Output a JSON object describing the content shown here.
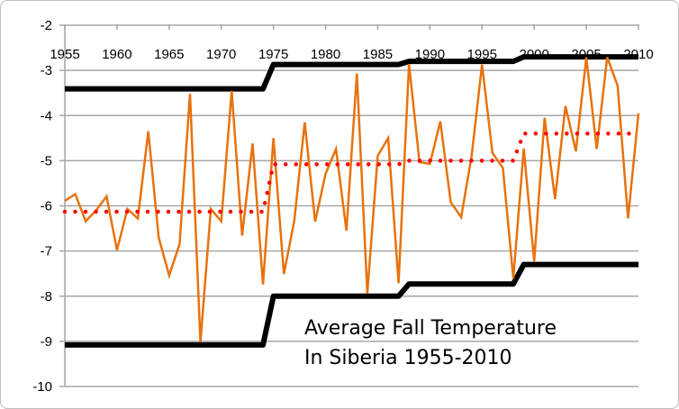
{
  "chart_data": {
    "type": "line",
    "title": "",
    "annotation": [
      "Average Fall Temperature",
      "In Siberia  1955-2010"
    ],
    "xlabel": "",
    "ylabel": "",
    "xlim": [
      1955,
      2010
    ],
    "ylim": [
      -10,
      -2
    ],
    "x_ticks": [
      "1955",
      "1960",
      "1965",
      "1970",
      "1975",
      "1980",
      "1985",
      "1990",
      "1995",
      "2000",
      "2005",
      "2010"
    ],
    "y_ticks": [
      "-2",
      "-3",
      "-4",
      "-5",
      "-6",
      "-7",
      "-8",
      "-9",
      "-10"
    ],
    "grid": true,
    "x_axis_position": "top",
    "legend": "none",
    "x": [
      1955,
      1956,
      1957,
      1958,
      1959,
      1960,
      1961,
      1962,
      1963,
      1964,
      1965,
      1966,
      1967,
      1968,
      1969,
      1970,
      1971,
      1972,
      1973,
      1974,
      1975,
      1976,
      1977,
      1978,
      1979,
      1980,
      1981,
      1982,
      1983,
      1984,
      1985,
      1986,
      1987,
      1988,
      1989,
      1990,
      1991,
      1992,
      1993,
      1994,
      1995,
      1996,
      1997,
      1998,
      1999,
      2000,
      2001,
      2002,
      2003,
      2004,
      2005,
      2006,
      2007,
      2008,
      2009,
      2010
    ],
    "series": [
      {
        "style": "solid",
        "color": "#e8720c",
        "values": [
          -5.89,
          -5.74,
          -6.34,
          -6.1,
          -5.79,
          -6.98,
          -6.07,
          -6.28,
          -4.35,
          -6.7,
          -7.54,
          -6.85,
          -3.52,
          -9.02,
          -6.07,
          -6.34,
          -3.45,
          -6.66,
          -4.62,
          -7.74,
          -4.5,
          -7.51,
          -6.33,
          -4.15,
          -6.35,
          -5.29,
          -4.74,
          -6.55,
          -3.07,
          -7.94,
          -4.89,
          -4.5,
          -7.71,
          -2.86,
          -5.03,
          -5.07,
          -4.13,
          -5.92,
          -6.25,
          -4.9,
          -2.87,
          -4.83,
          -5.16,
          -7.61,
          -4.73,
          -7.23,
          -4.05,
          -5.85,
          -3.79,
          -4.79,
          -2.71,
          -4.74,
          -2.71,
          -3.34,
          -6.28,
          -3.95
        ]
      },
      {
        "style": "dotted",
        "color": "#ff0000",
        "segments": [
          {
            "from": 1955,
            "to": 1974,
            "value": -6.13
          },
          {
            "from": 1975,
            "to": 1987,
            "value": -5.08
          },
          {
            "from": 1988,
            "to": 1998,
            "value": -5.0
          },
          {
            "from": 1999,
            "to": 2010,
            "value": -4.4
          }
        ]
      },
      {
        "style": "thick",
        "color": "#000000",
        "segments": [
          {
            "from": 1955,
            "to": 1974,
            "value": -3.41
          },
          {
            "from": 1975,
            "to": 1987,
            "value": -2.87
          },
          {
            "from": 1988,
            "to": 1998,
            "value": -2.8
          },
          {
            "from": 1999,
            "to": 2010,
            "value": -2.7
          }
        ]
      },
      {
        "style": "thick",
        "color": "#000000",
        "segments": [
          {
            "from": 1955,
            "to": 1974,
            "value": -9.08
          },
          {
            "from": 1975,
            "to": 1987,
            "value": -8.0
          },
          {
            "from": 1988,
            "to": 1998,
            "value": -7.73
          },
          {
            "from": 1999,
            "to": 2010,
            "value": -7.3
          }
        ]
      }
    ]
  }
}
